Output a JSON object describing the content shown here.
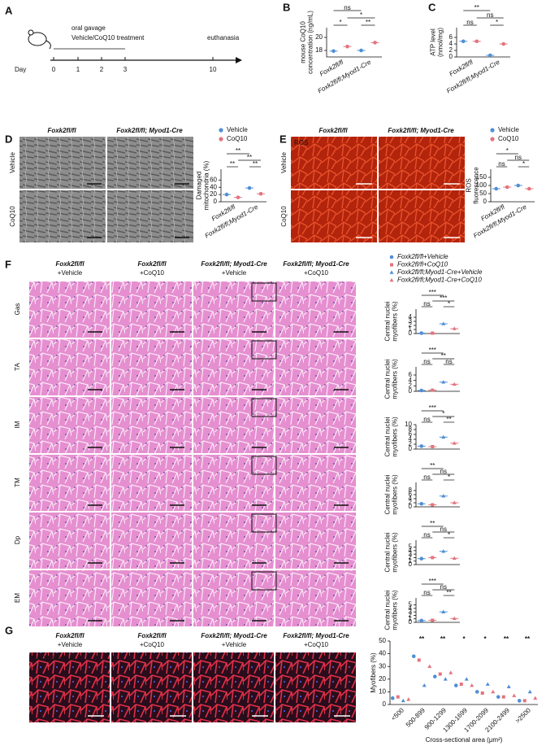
{
  "a": {
    "letter": "A",
    "treatment": [
      "oral gavage",
      "Vehicle/CoQ10 treatment"
    ],
    "end_label": "euthanasia",
    "day_label": "Day",
    "days": [
      "0",
      "1",
      "2",
      "3",
      "10"
    ]
  },
  "b": {
    "letter": "B",
    "chart": {
      "type": "dot",
      "y_label": [
        "mouse CoQ10",
        "concentration (ng/mL)"
      ],
      "ylim": [
        17,
        21.5
      ],
      "yticks": [
        18,
        20
      ],
      "categories": [
        "Foxk2fl/fl",
        "Foxk2fl/fl;Myod1-Cre"
      ],
      "series": [
        {
          "color": "#4f8fd6",
          "values": [
            17.9,
            18
          ]
        },
        {
          "color": "#e4737d",
          "values": [
            18.6,
            19.2
          ]
        }
      ],
      "significance": [
        "*",
        "**",
        "*",
        "ns"
      ]
    }
  },
  "c": {
    "letter": "C",
    "chart": {
      "type": "dot",
      "y_label": [
        "ATP level",
        "(nmol/mg)"
      ],
      "ylim": [
        0,
        9
      ],
      "yticks": [
        0,
        2,
        4,
        6
      ],
      "categories": [
        "Foxk2fl/fl",
        "Foxk2fl/fl;Myod1-Cre"
      ],
      "series": [
        {
          "color": "#4f8fd6",
          "values": [
            4.8,
            0.5
          ]
        },
        {
          "color": "#e4737d",
          "values": [
            4.8,
            4
          ]
        }
      ],
      "significance": [
        "ns",
        "*",
        "ns",
        "**"
      ]
    }
  },
  "d": {
    "letter": "D",
    "columns": [
      "Foxk2fl/fl",
      "Foxk2fl/fl; Myod1-Cre"
    ],
    "rows": [
      "Vehicle",
      "CoQ10"
    ],
    "chart": {
      "type": "dot",
      "y_label": [
        "Damaged",
        "mitochondria (%)"
      ],
      "ylim": [
        0,
        90
      ],
      "yticks": [
        0,
        20,
        40,
        60
      ],
      "categories": [
        "Foxk2fl/fl",
        "Foxk2fl/fl;Myod1-Cre"
      ],
      "series": [
        {
          "name": "Vehicle",
          "color": "#4f8fd6",
          "values": [
            20,
            38
          ]
        },
        {
          "name": "CoQ10",
          "color": "#e4737d",
          "values": [
            12,
            22
          ]
        }
      ],
      "significance": [
        "**",
        "**",
        "**",
        "**"
      ]
    }
  },
  "e": {
    "letter": "E",
    "columns": [
      "Foxk2fl/fl",
      "Foxk2fl/fl; Myod1-Cre"
    ],
    "rows": [
      "Vehicle",
      "CoQ10"
    ],
    "image_label": "ROS",
    "chart": {
      "type": "dot",
      "y_label": [
        "ROS",
        "fluorescence"
      ],
      "ylim": [
        0,
        200
      ],
      "yticks": [
        0,
        50,
        100,
        150
      ],
      "categories": [
        "Foxk2fl/fl",
        "Foxk2fl/fl;Myod1-Cre"
      ],
      "series": [
        {
          "name": "Vehicle",
          "color": "#4f8fd6",
          "values": [
            80,
            100
          ]
        },
        {
          "name": "CoQ10",
          "color": "#e4737d",
          "values": [
            90,
            80
          ]
        }
      ],
      "significance": [
        "ns",
        "*",
        "ns",
        "*"
      ]
    }
  },
  "f": {
    "letter": "F",
    "columns": [
      [
        "Foxk2fl/fl",
        "+Vehicle"
      ],
      [
        "Foxk2fl/fl",
        "+CoQ10"
      ],
      [
        "Foxk2fl/fl; Myod1-Cre",
        "+Vehicle"
      ],
      [
        "Foxk2fl/fl; Myod1-Cre",
        "+CoQ10"
      ]
    ],
    "legend": [
      {
        "name": "Foxk2fl/fl+Vehicle",
        "color": "#4f8fd6",
        "marker": "circle"
      },
      {
        "name": "Foxk2fl/fl+CoQ10",
        "color": "#e4737d",
        "marker": "square"
      },
      {
        "name": "Foxk2fl/fl;Myod1-Cre+Vehicle",
        "color": "#4f8fd6",
        "marker": "triangle"
      },
      {
        "name": "Foxk2fl/fl;Myod1-Cre+CoQ10",
        "color": "#e4737d",
        "marker": "triangle"
      }
    ],
    "rows": [
      {
        "label": "Gas",
        "chart": {
          "type": "dot",
          "y_label": [
            "Central nuclei",
            "myofibers (%)"
          ],
          "ylim": [
            0,
            6
          ],
          "yticks": [
            0,
            1,
            2,
            3,
            4
          ],
          "values": [
            0.1,
            0.1,
            2.4,
            1.2
          ],
          "significance": [
            "ns",
            "*",
            "***",
            "***"
          ]
        }
      },
      {
        "label": "TA",
        "chart": {
          "type": "dot",
          "y_label": [
            "Central nuclei",
            "myofibers (%)"
          ],
          "ylim": [
            0,
            9
          ],
          "yticks": [
            0,
            2,
            4,
            6
          ],
          "values": [
            0.3,
            0.4,
            3.4,
            2.6
          ],
          "significance": [
            "ns",
            "ns",
            "**",
            "***"
          ]
        }
      },
      {
        "label": "IM",
        "chart": {
          "type": "dot",
          "y_label": [
            "Central nuclei",
            "myofibers (%)"
          ],
          "ylim": [
            0,
            10
          ],
          "yticks": [
            0,
            2,
            4,
            6,
            8,
            10
          ],
          "values": [
            1.2,
            1,
            4.9,
            2.4
          ],
          "significance": [
            "ns",
            "**",
            "*",
            "***"
          ]
        }
      },
      {
        "label": "TM",
        "chart": {
          "type": "dot",
          "y_label": [
            "Central nuclei",
            "myofibers (%)"
          ],
          "ylim": [
            0,
            12
          ],
          "yticks": [
            0,
            2,
            4,
            6,
            8
          ],
          "values": [
            1.5,
            1,
            5.3,
            2
          ],
          "significance": [
            "ns",
            "*",
            "ns",
            "**"
          ]
        }
      },
      {
        "label": "Dp",
        "chart": {
          "type": "dot",
          "y_label": [
            "Central nuclei",
            "myofibers (%)"
          ],
          "ylim": [
            0,
            7
          ],
          "yticks": [
            0,
            1,
            2,
            3,
            4,
            5
          ],
          "values": [
            1.7,
            2,
            3.8,
            1.8
          ],
          "significance": [
            "ns",
            "*",
            "ns",
            "**"
          ]
        }
      },
      {
        "label": "EM",
        "chart": {
          "type": "dot",
          "y_label": [
            "Central nuclei",
            "myofibers (%)"
          ],
          "ylim": [
            0,
            7
          ],
          "yticks": [
            0,
            1,
            2,
            3,
            4,
            5
          ],
          "values": [
            0.5,
            0.6,
            3,
            1.1
          ],
          "significance": [
            "ns",
            "**",
            "ns",
            "***"
          ]
        }
      }
    ]
  },
  "g": {
    "letter": "G",
    "columns": [
      [
        "Foxk2fl/fl",
        "+Vehicle"
      ],
      [
        "Foxk2fl/fl",
        "+CoQ10"
      ],
      [
        "Foxk2fl/fl; Myod1-Cre",
        "+Vehicle"
      ],
      [
        "Foxk2fl/fl; Myod1-Cre",
        "+CoQ10"
      ]
    ],
    "image_labels": [
      {
        "text": "DAPI",
        "color": "#5a7bff"
      },
      {
        "text": "Laminin",
        "color": "#ff3344"
      }
    ],
    "chart": {
      "type": "dot",
      "y_label": [
        "Myofibers (%)"
      ],
      "x_label": "Cross-sectional area (μm²)",
      "ylim": [
        0,
        50
      ],
      "yticks": [
        0,
        10,
        20,
        30,
        40,
        50
      ],
      "categories": [
        "<500",
        "500-899",
        "900-1299",
        "1300-1699",
        "1700-2099",
        "2100-2499",
        ">2500"
      ],
      "series": [
        {
          "color": "#4f8fd6",
          "marker": "circle",
          "values": [
            5,
            38,
            22,
            15,
            10,
            6,
            3
          ]
        },
        {
          "color": "#e4737d",
          "marker": "square",
          "values": [
            6,
            35,
            24,
            16,
            9,
            6,
            3
          ]
        },
        {
          "color": "#4f8fd6",
          "marker": "triangle",
          "values": [
            3,
            15,
            20,
            20,
            16,
            14,
            10
          ]
        },
        {
          "color": "#e4737d",
          "marker": "triangle",
          "values": [
            4,
            30,
            25,
            15,
            10,
            7,
            5
          ]
        }
      ],
      "significance": [
        "**",
        "**",
        "*",
        "*",
        "**",
        "**"
      ]
    }
  }
}
